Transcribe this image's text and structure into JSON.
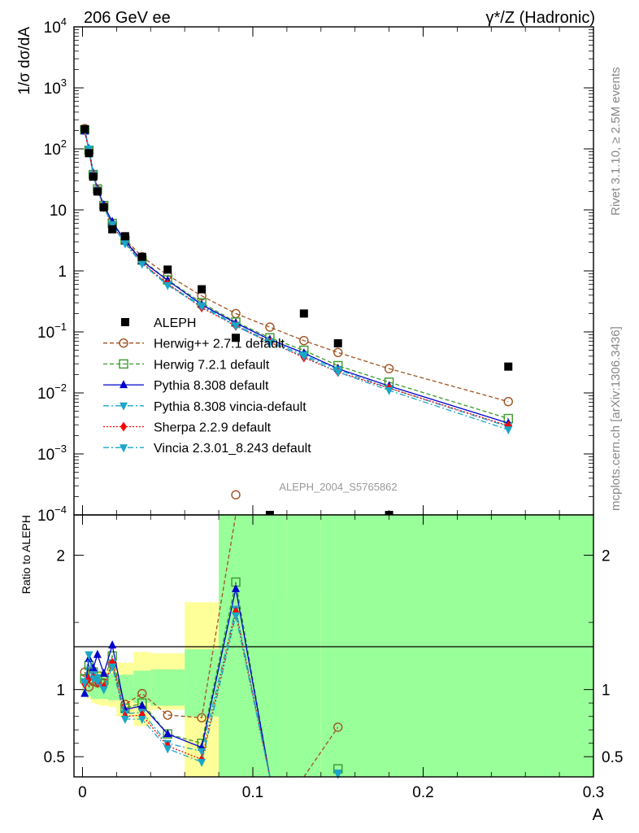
{
  "header": {
    "left_title": "206 GeV ee",
    "right_title": "γ*/Z (Hadronic)",
    "side_version": "Rivet 3.1.10, ≥ 2.5M events",
    "side_site": "mcplots.cern.ch [arXiv:1306.3436]",
    "watermark": "ALEPH_2004_S5765862"
  },
  "colors": {
    "data": "#000000",
    "herwigpp": "#a0521e",
    "herwig7": "#3a9a2a",
    "pythia": "#0000cc",
    "pythia_vincia": "#1aa6c8",
    "sherpa": "#ff0000",
    "vincia": "#1aa6c8",
    "band_stat": "#99ff99",
    "band_syst": "#ffff99"
  },
  "chart_data": [
    {
      "type": "line",
      "name": "main",
      "ylabel": "1/σ  dσ/dA",
      "yscale": "log",
      "ylim": [
        0.0001,
        10000
      ],
      "xlim": [
        -0.005,
        0.3
      ],
      "ytick_values": [
        0.0001,
        0.001,
        0.01,
        0.1,
        1,
        10,
        100,
        1000,
        10000
      ],
      "yticks": [
        {
          "base": "10",
          "exp": "−4"
        },
        {
          "base": "10",
          "exp": "−3"
        },
        {
          "base": "10",
          "exp": "−2"
        },
        {
          "base": "10",
          "exp": "−1"
        },
        {
          "base": "1",
          "exp": ""
        },
        {
          "base": "10",
          "exp": ""
        },
        {
          "base": "10",
          "exp": "2"
        },
        {
          "base": "10",
          "exp": "3"
        },
        {
          "base": "10",
          "exp": "4"
        }
      ],
      "x": [
        0.0013,
        0.0038,
        0.0063,
        0.0088,
        0.0125,
        0.0175,
        0.025,
        0.035,
        0.05,
        0.07,
        0.09,
        0.11,
        0.13,
        0.15,
        0.18,
        0.25
      ],
      "data": [
        210,
        85,
        35,
        20,
        11,
        4.8,
        3.7,
        1.7,
        1.05,
        0.5,
        0.08,
        8e-05,
        0.2,
        0.065,
        8e-05,
        0.027
      ],
      "series": [
        {
          "name": "Herwig++ 2.7.1 default",
          "key": "herwigpp",
          "marker": "circle-open",
          "dash": "5,3",
          "values": [
            215,
            95,
            37,
            21,
            11.5,
            5.7,
            3.3,
            1.7,
            0.85,
            0.39,
            0.2,
            0.12,
            0.072,
            0.046,
            0.025,
            0.0072
          ]
        },
        {
          "name": "Herwig 7.2.1 default",
          "key": "herwig7",
          "marker": "square-open",
          "dash": "5,3",
          "values": [
            205,
            95,
            38,
            22,
            11.8,
            6.0,
            3.2,
            1.5,
            0.71,
            0.3,
            0.145,
            0.08,
            0.05,
            0.028,
            0.015,
            0.0038
          ]
        },
        {
          "name": "Pythia 8.308 default",
          "key": "pythia",
          "marker": "triangle-up",
          "dash": "",
          "values": [
            195,
            100,
            40,
            22,
            12,
            6.4,
            3.1,
            1.45,
            0.7,
            0.28,
            0.14,
            0.075,
            0.045,
            0.025,
            0.013,
            0.0032
          ]
        },
        {
          "name": "Pythia 8.308 vincia-default",
          "key": "pythia_vincia",
          "marker": "triangle-down",
          "dash": "7,3,2,3",
          "values": [
            205,
            100,
            38,
            21,
            11.2,
            5.8,
            2.85,
            1.35,
            0.6,
            0.27,
            0.13,
            0.07,
            0.042,
            0.024,
            0.012,
            0.0028
          ]
        },
        {
          "name": "Sherpa 2.2.9 default",
          "key": "sherpa",
          "marker": "diamond",
          "dash": "2,2",
          "values": [
            200,
            90,
            38,
            21,
            11,
            5.5,
            2.9,
            1.35,
            0.62,
            0.25,
            0.125,
            0.068,
            0.038,
            0.022,
            0.012,
            0.0029
          ]
        },
        {
          "name": "Vincia 2.3.01_8.243 default",
          "key": "vincia",
          "marker": "triangle-down",
          "dash": "7,3,2,3",
          "values": [
            205,
            100,
            37,
            21,
            11,
            5.7,
            2.8,
            1.3,
            0.58,
            0.26,
            0.125,
            0.066,
            0.04,
            0.022,
            0.011,
            0.0025
          ]
        }
      ],
      "data_label": "ALEPH"
    },
    {
      "type": "line",
      "name": "ratio",
      "ylabel": "Ratio to ALEPH",
      "xlabel": "A",
      "ylim": [
        0.35,
        2.3
      ],
      "xlim": [
        -0.005,
        0.3
      ],
      "yticks": [
        "0.5",
        "1",
        "2"
      ],
      "ytick_values": [
        0.5,
        1,
        2
      ],
      "xticks": [
        "0",
        "0.1",
        "0.2",
        "0.3"
      ],
      "xtick_values": [
        0,
        0.1,
        0.2,
        0.3
      ],
      "bands": [
        {
          "x0": 0.0,
          "x1": 0.0025,
          "stat": [
            0.97,
            1.05
          ],
          "syst": [
            0.95,
            1.08
          ]
        },
        {
          "x0": 0.0025,
          "x1": 0.005,
          "stat": [
            0.95,
            1.08
          ],
          "syst": [
            0.93,
            1.1
          ]
        },
        {
          "x0": 0.005,
          "x1": 0.0075,
          "stat": [
            0.93,
            1.09
          ],
          "syst": [
            0.9,
            1.12
          ]
        },
        {
          "x0": 0.0075,
          "x1": 0.01,
          "stat": [
            0.93,
            1.1
          ],
          "syst": [
            0.89,
            1.13
          ]
        },
        {
          "x0": 0.01,
          "x1": 0.015,
          "stat": [
            0.93,
            1.1
          ],
          "syst": [
            0.88,
            1.14
          ]
        },
        {
          "x0": 0.015,
          "x1": 0.02,
          "stat": [
            0.92,
            1.12
          ],
          "syst": [
            0.87,
            1.16
          ]
        },
        {
          "x0": 0.02,
          "x1": 0.03,
          "stat": [
            0.92,
            1.11
          ],
          "syst": [
            0.8,
            1.2
          ]
        },
        {
          "x0": 0.03,
          "x1": 0.04,
          "stat": [
            0.9,
            1.14
          ],
          "syst": [
            0.73,
            1.28
          ]
        },
        {
          "x0": 0.04,
          "x1": 0.06,
          "stat": [
            0.88,
            1.15
          ],
          "syst": [
            0.85,
            1.27
          ]
        },
        {
          "x0": 0.06,
          "x1": 0.08,
          "stat": [
            0.8,
            1.3
          ],
          "syst": [
            0.35,
            1.65
          ]
        },
        {
          "x0": 0.08,
          "x1": 0.12,
          "stat": [
            0.35,
            2.3
          ],
          "syst": [
            0.35,
            2.3
          ]
        },
        {
          "x0": 0.12,
          "x1": 0.14,
          "stat": [
            0.35,
            2.3
          ],
          "syst": [
            1.72,
            2.22
          ]
        },
        {
          "x0": 0.14,
          "x1": 0.3,
          "stat": [
            0.35,
            2.3
          ],
          "syst": [
            0.35,
            2.3
          ]
        }
      ],
      "series": [
        {
          "key": "herwigpp",
          "values": [
            1.13,
            1.02,
            1.06,
            1.05,
            1.05,
            1.19,
            0.89,
            0.97,
            0.81,
            0.79,
            2.45,
            null,
            0.35,
            0.72,
            null,
            0.35
          ]
        },
        {
          "key": "herwig7",
          "values": [
            1.08,
            1.18,
            1.13,
            1.1,
            1.07,
            1.25,
            0.86,
            0.9,
            0.67,
            0.6,
            1.8,
            0.35,
            null,
            0.41,
            null,
            0.35
          ]
        },
        {
          "key": "pythia",
          "values": [
            0.97,
            1.23,
            1.16,
            1.26,
            1.12,
            1.33,
            0.85,
            0.88,
            0.67,
            0.57,
            1.75,
            0.35,
            null,
            null,
            null,
            null
          ]
        },
        {
          "key": "pythia_vincia",
          "values": [
            1.06,
            1.26,
            1.11,
            1.09,
            1.02,
            1.2,
            0.82,
            0.83,
            0.6,
            0.54,
            1.6,
            0.35,
            null,
            0.38,
            null,
            null
          ]
        },
        {
          "key": "sherpa",
          "values": [
            1.04,
            1.08,
            1.09,
            1.05,
            1.02,
            1.2,
            0.8,
            0.81,
            0.58,
            0.48,
            1.58,
            0.35,
            null,
            null,
            null,
            null
          ]
        },
        {
          "key": "vincia",
          "values": [
            1.05,
            1.26,
            1.08,
            1.06,
            1.0,
            1.17,
            0.78,
            0.78,
            0.56,
            0.46,
            1.55,
            0.35,
            null,
            0.37,
            null,
            null
          ]
        }
      ]
    }
  ]
}
